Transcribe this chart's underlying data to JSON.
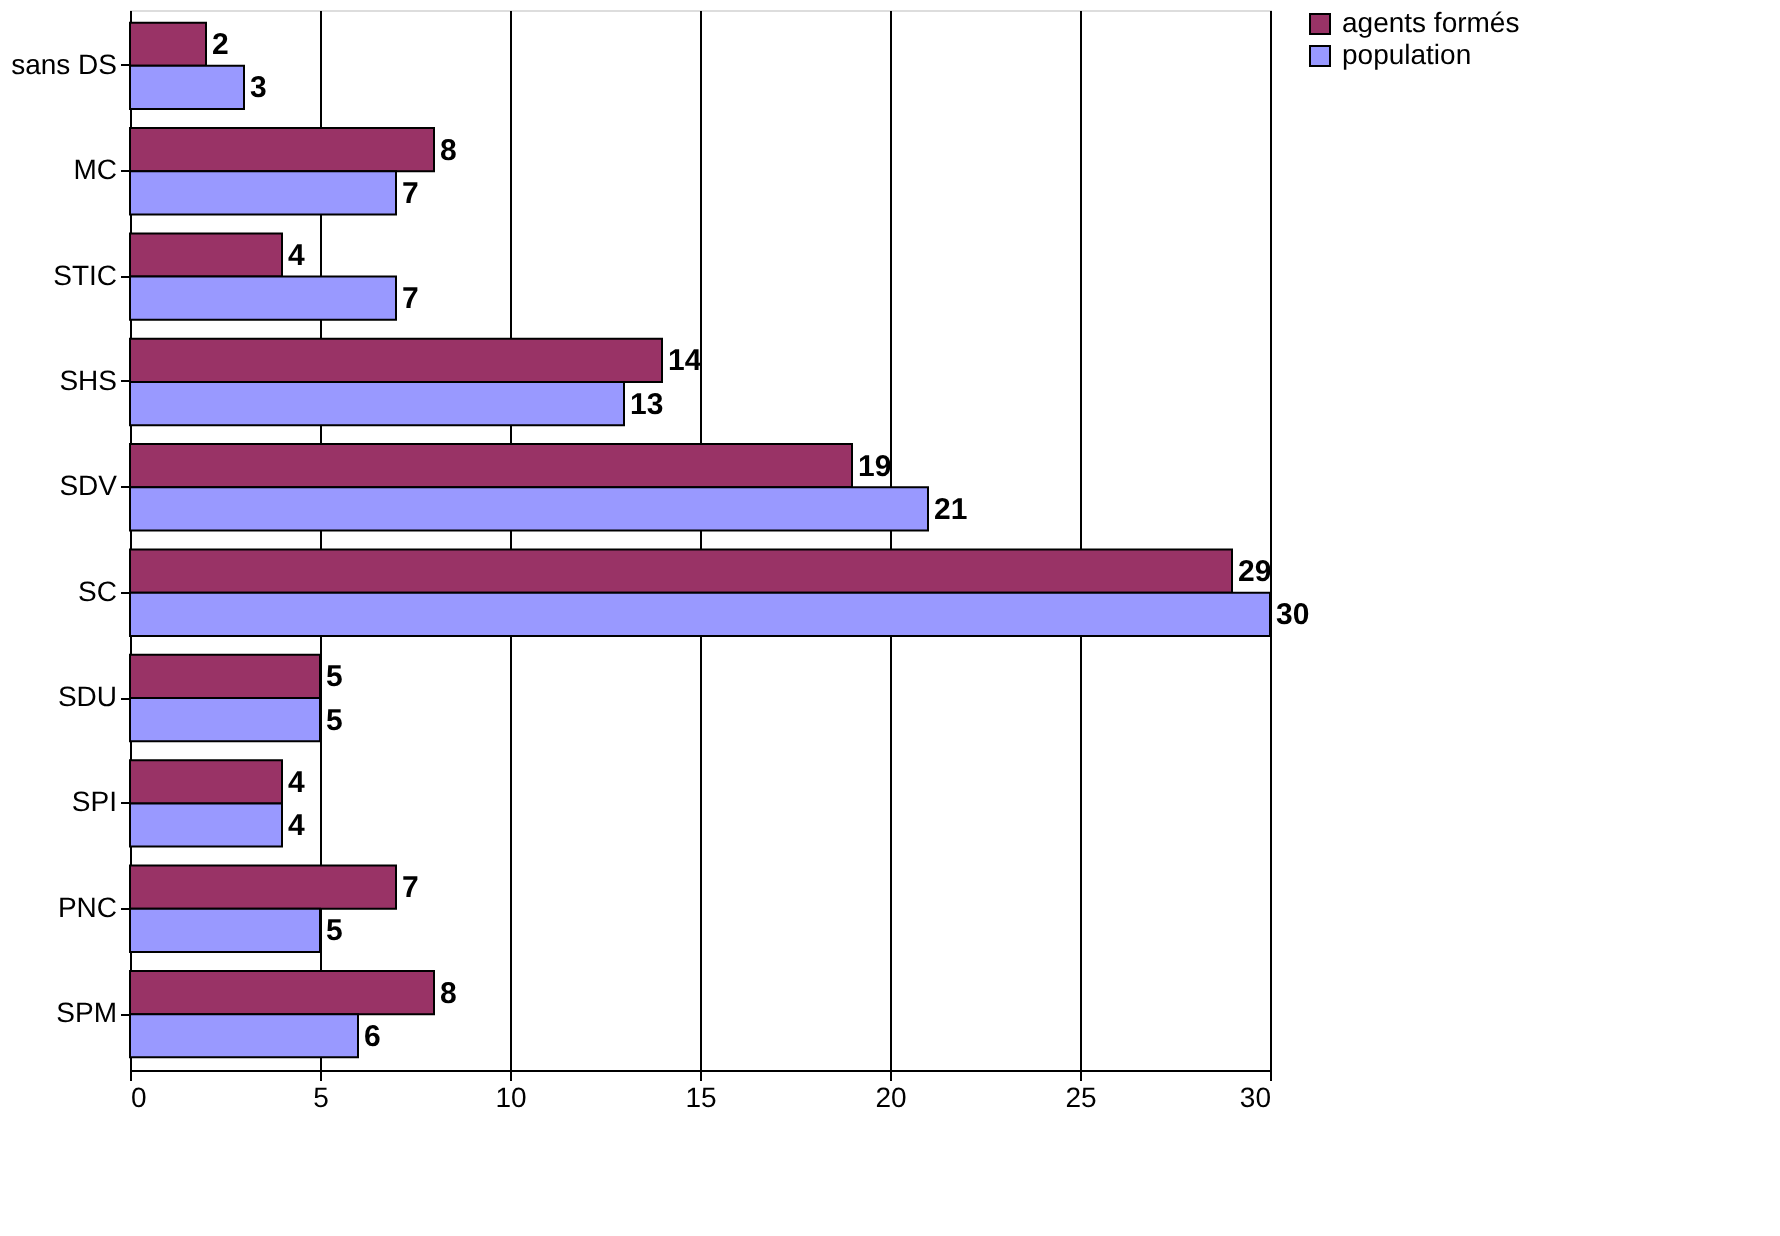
{
  "chart_data": {
    "type": "bar",
    "orientation": "horizontal",
    "categories": [
      "sans DS",
      "MC",
      "STIC",
      "SHS",
      "SDV",
      "SC",
      "SDU",
      "SPI",
      "PNC",
      "SPM"
    ],
    "series": [
      {
        "name": "agents formés",
        "color": "#993366",
        "values": [
          2,
          8,
          4,
          14,
          19,
          29,
          5,
          4,
          7,
          8
        ]
      },
      {
        "name": "population",
        "color": "#9999ff",
        "values": [
          3,
          7,
          7,
          13,
          21,
          30,
          5,
          4,
          5,
          6
        ]
      }
    ],
    "xlim": [
      0,
      30
    ],
    "xticks": [
      0,
      5,
      10,
      15,
      20,
      25,
      30
    ],
    "grid": "x",
    "legend": "right",
    "data_labels": true
  }
}
